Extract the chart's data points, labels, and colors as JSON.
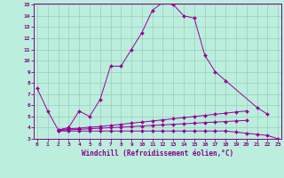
{
  "xlabel": "Windchill (Refroidissement éolien,°C)",
  "line_color": "#990099",
  "bg_color": "#bbeedd",
  "grid_color": "#99ccbb",
  "x": [
    0,
    1,
    2,
    3,
    4,
    5,
    6,
    7,
    8,
    9,
    10,
    11,
    12,
    13,
    14,
    15,
    16,
    17,
    18,
    19,
    20,
    21,
    22,
    23
  ],
  "line1": [
    7.5,
    5.5,
    3.8,
    4.0,
    5.5,
    5.0,
    6.5,
    9.5,
    9.5,
    11.0,
    12.5,
    14.5,
    15.2,
    15.0,
    14.0,
    13.8,
    10.5,
    9.0,
    8.2,
    null,
    null,
    5.8,
    5.2,
    null
  ],
  "line2": [
    null,
    null,
    3.8,
    3.9,
    3.95,
    4.05,
    4.1,
    4.2,
    4.3,
    4.4,
    4.5,
    4.6,
    4.7,
    4.8,
    4.9,
    5.0,
    5.1,
    5.2,
    5.3,
    5.4,
    5.5,
    null,
    null,
    null
  ],
  "line3": [
    null,
    null,
    3.75,
    3.8,
    3.85,
    3.9,
    3.95,
    4.0,
    4.05,
    4.1,
    4.15,
    4.2,
    4.25,
    4.3,
    4.35,
    4.4,
    4.45,
    4.5,
    4.55,
    4.6,
    4.65,
    null,
    null,
    null
  ],
  "line4": [
    null,
    null,
    3.7,
    3.7,
    3.7,
    3.7,
    3.7,
    3.7,
    3.7,
    3.7,
    3.7,
    3.7,
    3.7,
    3.7,
    3.7,
    3.7,
    3.7,
    3.7,
    3.7,
    3.6,
    3.5,
    3.4,
    3.3,
    3.0
  ],
  "ylim_min": 3,
  "ylim_max": 15,
  "xlim_min": 0,
  "xlim_max": 23,
  "yticks": [
    3,
    4,
    5,
    6,
    7,
    8,
    9,
    10,
    11,
    12,
    13,
    14,
    15
  ],
  "xticks": [
    0,
    1,
    2,
    3,
    4,
    5,
    6,
    7,
    8,
    9,
    10,
    11,
    12,
    13,
    14,
    15,
    16,
    17,
    18,
    19,
    20,
    21,
    22,
    23
  ]
}
